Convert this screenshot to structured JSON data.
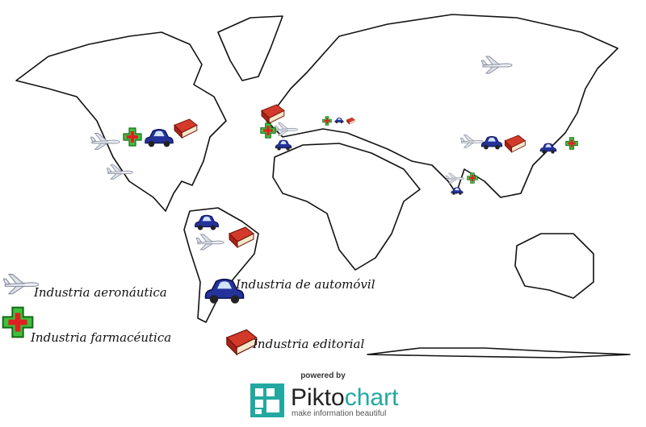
{
  "legend": [
    {
      "label": "Industria aeronáutica"
    },
    {
      "label": "Industria farmacéutica"
    },
    {
      "label": "Industria de automóvil"
    },
    {
      "label": "Industria editorial"
    }
  ],
  "footer": {
    "powered_by": "powered by",
    "brand": [
      "Pikto",
      "chart"
    ],
    "tagline": "make information beautiful"
  }
}
